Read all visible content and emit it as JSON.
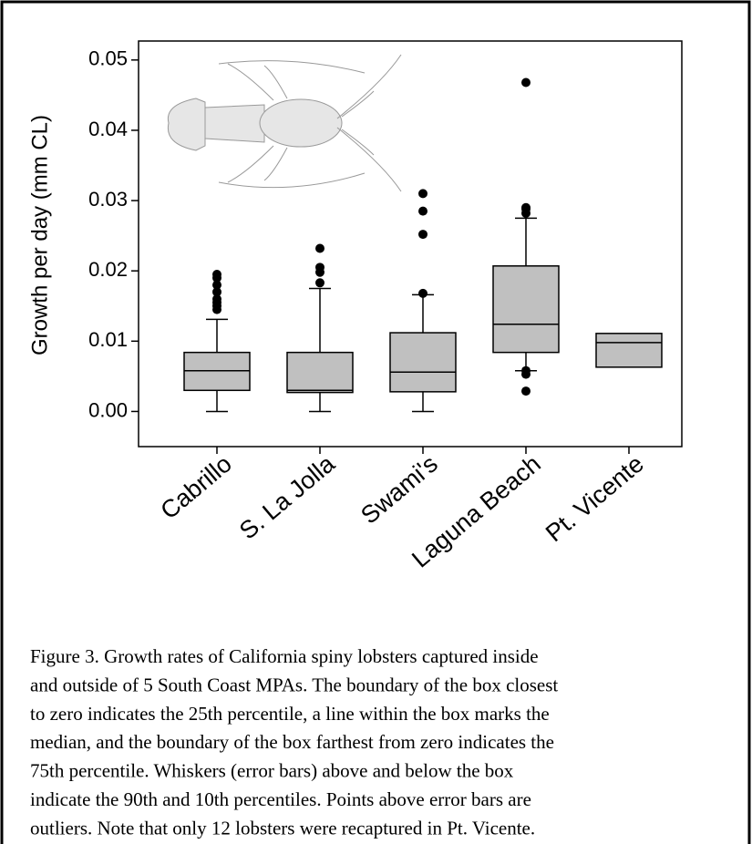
{
  "chart_data": {
    "type": "box",
    "y_label": "Growth per day (mm CL)",
    "categories": [
      "Cabrillo",
      "S. La Jolla",
      "Swami's",
      "Laguna Beach",
      "Pt. Vicente"
    ],
    "whisker_low": [
      0,
      0,
      0,
      0.0058,
      null
    ],
    "q1": [
      0.003,
      0.0027,
      0.0028,
      0.0084,
      0.0063
    ],
    "median": [
      0.0058,
      0.003,
      0.0056,
      0.0124,
      0.0098
    ],
    "q3": [
      0.0084,
      0.0084,
      0.0112,
      0.0207,
      0.0111
    ],
    "whisker_high": [
      0.0131,
      0.0175,
      0.0166,
      0.0275,
      null
    ],
    "outliers": [
      [
        0.0145,
        0.015,
        0.0155,
        0.016,
        0.017,
        0.018,
        0.019,
        0.0195
      ],
      [
        0.0183,
        0.0198,
        0.0205,
        0.0232
      ],
      [
        0.0168,
        0.0252,
        0.0285,
        0.031
      ],
      [
        0.0029,
        0.0053,
        0.0058,
        0.0282,
        0.0288,
        0.029,
        0.0468
      ],
      []
    ],
    "color": "#c0c0c0",
    "ylim": [
      -0.005,
      0.0527
    ],
    "yticks": [
      {
        "value": 0,
        "label": "0.00"
      },
      {
        "value": 0.01,
        "label": "0.01"
      },
      {
        "value": 0.02,
        "label": "0.02"
      },
      {
        "value": 0.03,
        "label": "0.03"
      },
      {
        "value": 0.04,
        "label": "0.04"
      },
      {
        "value": 0.05,
        "label": "0.05"
      }
    ]
  },
  "caption": {
    "lines": [
      "Figure 3. Growth rates of California spiny lobsters captured inside",
      "and outside of 5 South Coast MPAs. The boundary of the box closest",
      "to zero indicates the 25th percentile, a line within the box marks the",
      "median, and the boundary of the box farthest from zero indicates the",
      "75th percentile. Whiskers (error bars) above and below the box",
      "indicate the 90th and 10th percentiles. Points above error bars are",
      "outliers. Note that only 12 lobsters were recaptured in Pt. Vicente."
    ]
  }
}
